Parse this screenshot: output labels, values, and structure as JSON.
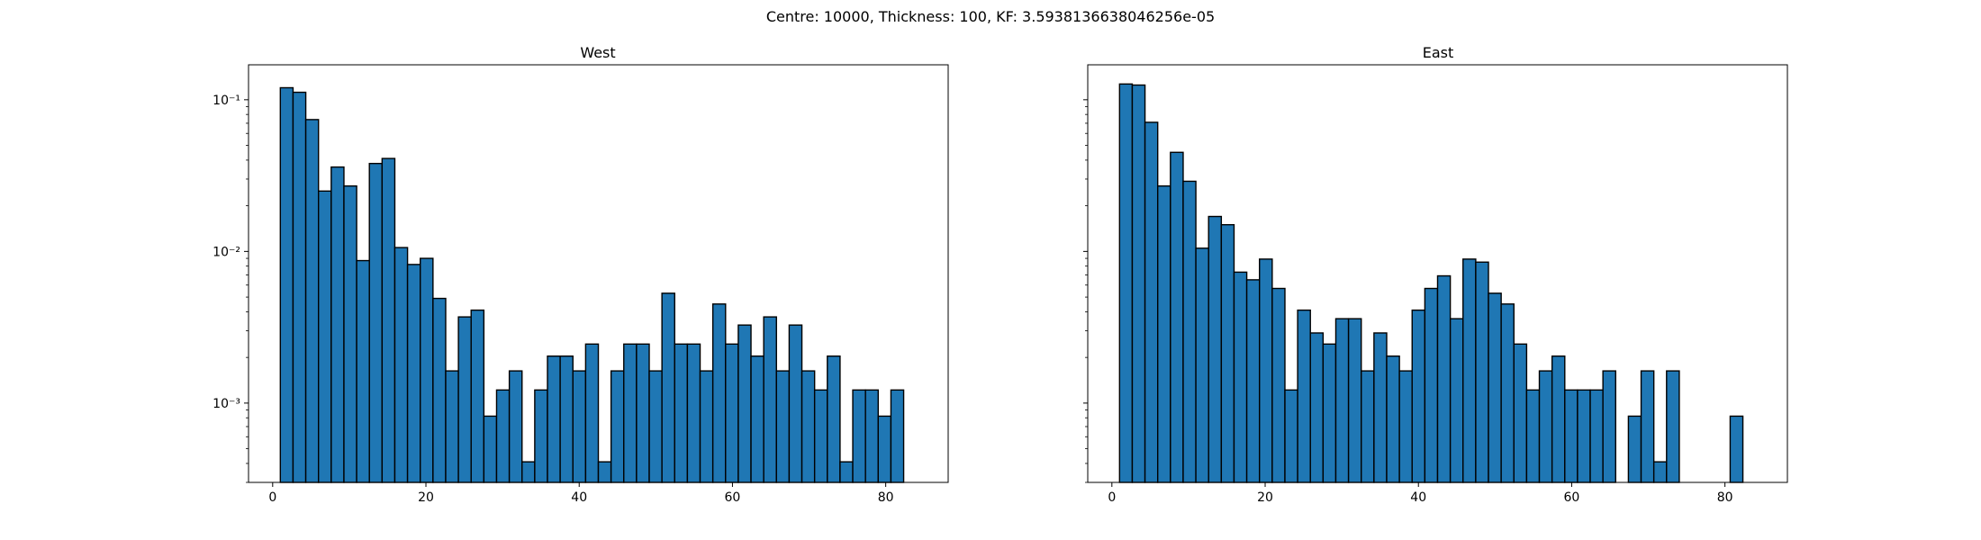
{
  "figure": {
    "suptitle": "Centre: 10000, Thickness: 100, KF: 3.5938136638046256e-05"
  },
  "colors": {
    "bar_fill": "#1f77b4",
    "bar_edge": "#000000",
    "axes_edge": "#000000",
    "background": "#ffffff"
  },
  "chart_data": [
    {
      "type": "bar",
      "title": "West",
      "xlabel": "",
      "ylabel": "",
      "yscale": "log",
      "xlim": [
        -3.15,
        88.15
      ],
      "ylim": [
        0.0003,
        0.17
      ],
      "xticks": [
        0,
        20,
        40,
        60,
        80
      ],
      "xtick_labels": [
        "0",
        "20",
        "40",
        "60",
        "80"
      ],
      "yticks": [
        0.001,
        0.01,
        0.1
      ],
      "ytick_labels": [
        "10⁻³",
        "10⁻²",
        "10⁻¹"
      ],
      "grid": false,
      "bin_width": 1.66,
      "bin_edges_start": 1,
      "values": [
        0.12,
        0.112,
        0.074,
        0.025,
        0.036,
        0.027,
        0.0087,
        0.038,
        0.041,
        0.0106,
        0.0082,
        0.009,
        0.0049,
        0.00163,
        0.0037,
        0.0041,
        0.00082,
        0.00122,
        0.00163,
        0.00041,
        0.00122,
        0.00204,
        0.00204,
        0.00163,
        0.00245,
        0.00041,
        0.00163,
        0.00245,
        0.00245,
        0.00163,
        0.0053,
        0.00245,
        0.00245,
        0.00163,
        0.0045,
        0.00245,
        0.00327,
        0.00204,
        0.0037,
        0.00163,
        0.00327,
        0.00163,
        0.00122,
        0.00204,
        0.00041,
        0.00122,
        0.00122,
        0.00082,
        0.00122
      ]
    },
    {
      "type": "bar",
      "title": "East",
      "xlabel": "",
      "ylabel": "",
      "yscale": "log",
      "xlim": [
        -3.15,
        88.15
      ],
      "ylim": [
        0.0003,
        0.17
      ],
      "xticks": [
        0,
        20,
        40,
        60,
        80
      ],
      "xtick_labels": [
        "0",
        "20",
        "40",
        "60",
        "80"
      ],
      "yticks": [
        0.001,
        0.01,
        0.1
      ],
      "ytick_labels": [
        "",
        "",
        ""
      ],
      "grid": false,
      "bin_width": 1.66,
      "bin_edges_start": 1,
      "values": [
        0.127,
        0.125,
        0.071,
        0.027,
        0.045,
        0.029,
        0.0105,
        0.017,
        0.015,
        0.0073,
        0.0065,
        0.0089,
        0.0057,
        0.00122,
        0.0041,
        0.0029,
        0.00245,
        0.0036,
        0.0036,
        0.00163,
        0.0029,
        0.00204,
        0.00163,
        0.0041,
        0.0057,
        0.0069,
        0.0036,
        0.0089,
        0.0085,
        0.0053,
        0.0045,
        0.00245,
        0.00122,
        0.00163,
        0.00204,
        0.00122,
        0.00122,
        0.00122,
        0.00163,
        0,
        0.00082,
        0.00163,
        0.00041,
        0.00163,
        0,
        0,
        0,
        0,
        0.00082
      ]
    }
  ]
}
